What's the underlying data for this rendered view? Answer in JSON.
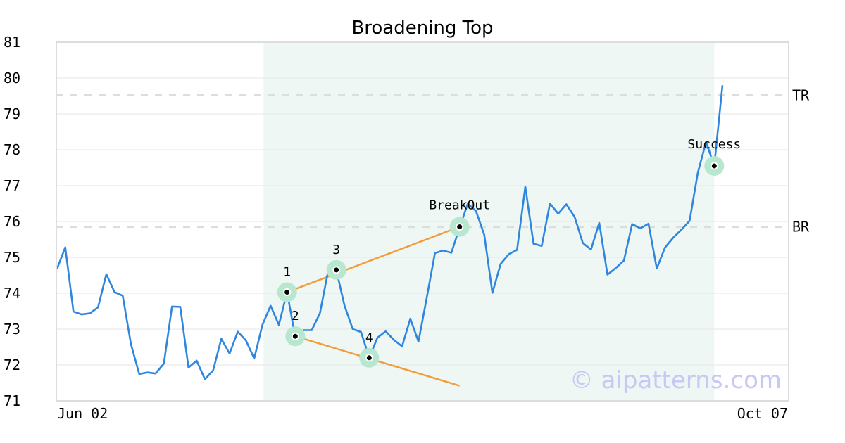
{
  "chart_data": {
    "type": "line",
    "title": "Broadening Top",
    "xlabel": "",
    "ylabel": "",
    "ylim": [
      71,
      81
    ],
    "y_ticks": [
      "71",
      "72",
      "73",
      "74",
      "75",
      "76",
      "77",
      "78",
      "79",
      "80",
      "81"
    ],
    "x_tick_labels": {
      "start": "Jun 02",
      "end": "Oct 07"
    },
    "grid": "horizontal",
    "colors": {
      "price": "#2e86de",
      "trendline": "#f39c3c",
      "shade": "#eef7f3",
      "marker_ring": "#b7e7cf",
      "level": "#dddddd",
      "watermark": "#c8c8f4"
    },
    "series": [
      {
        "values": [
          74.68,
          75.28,
          73.49,
          73.41,
          73.44,
          73.61,
          74.53,
          74.03,
          73.93,
          72.58,
          71.75,
          71.79,
          71.76,
          72.04,
          73.63,
          73.62,
          71.93,
          72.12,
          71.6,
          71.85,
          72.73,
          72.32,
          72.93,
          72.68,
          72.18,
          73.12,
          73.65,
          73.12,
          74.03,
          72.78,
          72.97,
          72.97,
          73.44,
          74.62,
          74.64,
          73.65,
          73.0,
          72.92,
          72.2,
          72.76,
          72.94,
          72.7,
          72.52,
          73.29,
          72.65,
          73.87,
          75.12,
          75.19,
          75.13,
          75.83,
          76.5,
          76.29,
          75.63,
          74.01,
          74.82,
          75.09,
          75.21,
          76.97,
          75.38,
          75.32,
          76.5,
          76.22,
          76.48,
          76.13,
          75.4,
          75.22,
          75.96,
          74.52,
          74.7,
          74.91,
          75.93,
          75.81,
          75.94,
          74.69,
          75.27,
          75.55,
          75.77,
          76.02,
          77.36,
          78.22,
          77.55,
          79.8
        ]
      }
    ],
    "shaded_range": {
      "start_index": 26,
      "end_index": 80
    },
    "levels": [
      {
        "label": "TR",
        "value": 79.52
      },
      {
        "label": "BR",
        "value": 75.85
      }
    ],
    "pattern_points": [
      {
        "label": "1",
        "index": 28,
        "value": 74.03
      },
      {
        "label": "2",
        "index": 29,
        "value": 72.8
      },
      {
        "label": "3",
        "index": 34,
        "value": 74.65
      },
      {
        "label": "4",
        "index": 38,
        "value": 72.2
      }
    ],
    "annotations": [
      {
        "label": "BreakOut",
        "index": 49,
        "value": 75.85
      },
      {
        "label": "Success",
        "index": 80,
        "value": 77.55
      }
    ],
    "trendlines": [
      {
        "from": {
          "index": 28,
          "value": 74.03
        },
        "to": {
          "index": 49,
          "value": 75.85
        }
      },
      {
        "from": {
          "index": 29,
          "value": 72.8
        },
        "to": {
          "index": 49,
          "value": 71.42
        }
      }
    ],
    "watermark": "© aipatterns.com"
  }
}
